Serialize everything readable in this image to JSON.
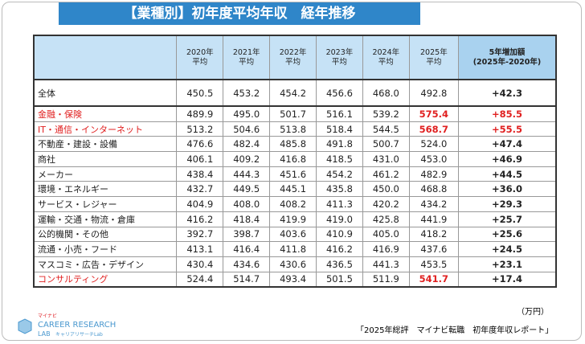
{
  "title": "【業種別】初年度平均年収　経年推移",
  "table": {
    "columns": [
      "",
      "2020年\n平均",
      "2021年\n平均",
      "2022年\n平均",
      "2023年\n平均",
      "2024年\n平均",
      "2025年\n平均",
      "5年増加額\n(2025年-2020年)"
    ],
    "rows": [
      {
        "label": "全体",
        "values": [
          "450.5",
          "453.2",
          "454.2",
          "456.6",
          "468.0",
          "492.8",
          "+42.3"
        ],
        "total": true
      },
      {
        "label": "金融・保険",
        "values": [
          "489.9",
          "495.0",
          "501.7",
          "516.1",
          "539.2",
          "575.4",
          "+85.5"
        ],
        "highlight": true,
        "red_cols": [
          5,
          6
        ]
      },
      {
        "label": "IT・通信・インターネット",
        "values": [
          "513.2",
          "504.6",
          "513.8",
          "518.4",
          "544.5",
          "568.7",
          "+55.5"
        ],
        "highlight": true,
        "red_cols": [
          5,
          6
        ]
      },
      {
        "label": "不動産・建設・設備",
        "values": [
          "476.6",
          "482.4",
          "485.8",
          "491.8",
          "500.7",
          "524.0",
          "+47.4"
        ]
      },
      {
        "label": "商社",
        "values": [
          "406.1",
          "409.2",
          "416.8",
          "418.5",
          "431.0",
          "453.0",
          "+46.9"
        ]
      },
      {
        "label": "メーカー",
        "values": [
          "438.4",
          "444.3",
          "451.6",
          "454.2",
          "461.2",
          "482.9",
          "+44.5"
        ]
      },
      {
        "label": "環境・エネルギー",
        "values": [
          "432.7",
          "449.5",
          "445.1",
          "435.8",
          "450.0",
          "468.8",
          "+36.0"
        ]
      },
      {
        "label": "サービス・レジャー",
        "values": [
          "404.9",
          "408.0",
          "408.2",
          "411.3",
          "420.2",
          "434.2",
          "+29.3"
        ]
      },
      {
        "label": "運輸・交通・物流・倉庫",
        "values": [
          "416.2",
          "418.4",
          "419.9",
          "419.0",
          "425.8",
          "441.9",
          "+25.7"
        ]
      },
      {
        "label": "公的機関・その他",
        "values": [
          "392.7",
          "398.7",
          "403.6",
          "410.9",
          "405.0",
          "418.2",
          "+25.6"
        ]
      },
      {
        "label": "流通・小売・フード",
        "values": [
          "413.1",
          "416.4",
          "411.8",
          "416.2",
          "416.9",
          "437.6",
          "+24.5"
        ]
      },
      {
        "label": "マスコミ・広告・デザイン",
        "values": [
          "430.4",
          "434.6",
          "430.6",
          "436.5",
          "441.3",
          "453.5",
          "+23.1"
        ]
      },
      {
        "label": "コンサルティング",
        "values": [
          "524.4",
          "514.7",
          "493.4",
          "501.5",
          "511.9",
          "541.7",
          "+17.4"
        ],
        "highlight": true,
        "red_cols": [
          5
        ]
      }
    ]
  },
  "unit": "（万円）",
  "logo": {
    "brand": "マイナビ",
    "name": "CAREER RESEARCH",
    "lab": "LAB",
    "sub": "キャリアリサーチLab"
  },
  "source": "「2025年総評　マイナビ転職　初年度年収レポート」"
}
